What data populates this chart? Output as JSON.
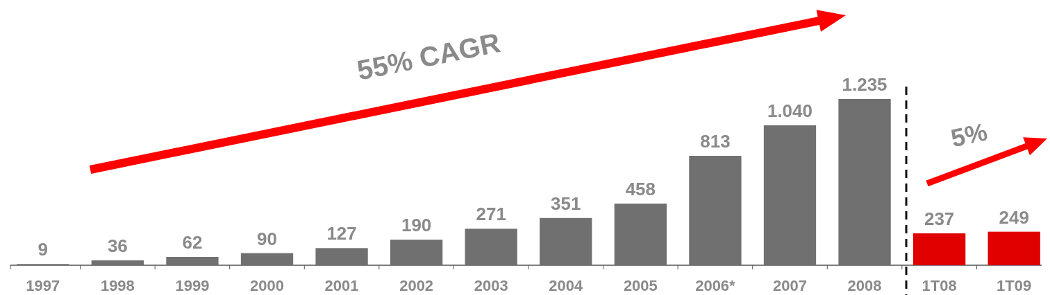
{
  "chart_data": {
    "type": "bar",
    "categories": [
      "1997",
      "1998",
      "1999",
      "2000",
      "2001",
      "2002",
      "2003",
      "2004",
      "2005",
      "2006*",
      "2007",
      "2008",
      "1T08",
      "1T09"
    ],
    "values": [
      9,
      36,
      62,
      90,
      127,
      190,
      271,
      351,
      458,
      813,
      1040,
      1235,
      237,
      249
    ],
    "colors": [
      "#707070",
      "#707070",
      "#707070",
      "#707070",
      "#707070",
      "#707070",
      "#707070",
      "#707070",
      "#707070",
      "#707070",
      "#707070",
      "#707070",
      "#e00000",
      "#e00000"
    ],
    "value_labels": [
      "9",
      "36",
      "62",
      "90",
      "127",
      "190",
      "271",
      "351",
      "458",
      "813",
      "1.040",
      "1.235",
      "237",
      "249"
    ],
    "annotations": [
      "55% CAGR",
      "5%"
    ]
  }
}
